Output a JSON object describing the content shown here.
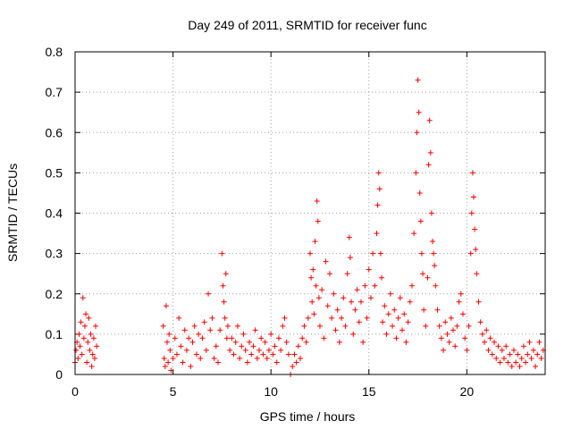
{
  "chart_data": {
    "type": "scatter",
    "title": "Day 249 of 2011, SRMTID for receiver func",
    "xlabel": "GPS time / hours",
    "ylabel": "SRMTID / TECUs",
    "xlim": [
      0,
      24
    ],
    "ylim": [
      0,
      0.8
    ],
    "xticks": [
      0,
      5,
      10,
      15,
      20
    ],
    "xtick_labels": [
      "0",
      "5",
      "10",
      "15",
      "20"
    ],
    "yticks": [
      0,
      0.1,
      0.2,
      0.3,
      0.4,
      0.5,
      0.6,
      0.7,
      0.8
    ],
    "ytick_labels": [
      "0",
      "0.1",
      "0.2",
      "0.3",
      "0.4",
      "0.5",
      "0.6",
      "0.7",
      "0.8"
    ],
    "grid": true,
    "marker": "plus",
    "color": "#ff0000",
    "series": [
      {
        "name": "SRMTID",
        "points": [
          [
            0.0,
            0.03
          ],
          [
            0.05,
            0.06
          ],
          [
            0.1,
            0.08
          ],
          [
            0.15,
            0.04
          ],
          [
            0.2,
            0.1
          ],
          [
            0.25,
            0.07
          ],
          [
            0.3,
            0.13
          ],
          [
            0.35,
            0.05
          ],
          [
            0.4,
            0.19
          ],
          [
            0.45,
            0.09
          ],
          [
            0.5,
            0.12
          ],
          [
            0.55,
            0.15
          ],
          [
            0.6,
            0.03
          ],
          [
            0.65,
            0.08
          ],
          [
            0.7,
            0.14
          ],
          [
            0.75,
            0.06
          ],
          [
            0.8,
            0.1
          ],
          [
            0.85,
            0.02
          ],
          [
            0.9,
            0.05
          ],
          [
            0.95,
            0.09
          ],
          [
            1.0,
            0.04
          ],
          [
            1.05,
            0.12
          ],
          [
            1.1,
            0.07
          ],
          [
            4.5,
            0.12
          ],
          [
            4.55,
            0.04
          ],
          [
            4.6,
            0.02
          ],
          [
            4.65,
            0.17
          ],
          [
            4.7,
            0.08
          ],
          [
            4.75,
            0.03
          ],
          [
            4.8,
            0.1
          ],
          [
            4.85,
            0.06
          ],
          [
            4.9,
            0.01
          ],
          [
            5.0,
            0.04
          ],
          [
            5.1,
            0.09
          ],
          [
            5.2,
            0.05
          ],
          [
            5.3,
            0.14
          ],
          [
            5.4,
            0.07
          ],
          [
            5.5,
            0.03
          ],
          [
            5.6,
            0.11
          ],
          [
            5.7,
            0.06
          ],
          [
            5.8,
            0.09
          ],
          [
            5.9,
            0.02
          ],
          [
            6.0,
            0.08
          ],
          [
            6.1,
            0.12
          ],
          [
            6.2,
            0.05
          ],
          [
            6.3,
            0.1
          ],
          [
            6.4,
            0.04
          ],
          [
            6.5,
            0.09
          ],
          [
            6.6,
            0.13
          ],
          [
            6.7,
            0.06
          ],
          [
            6.8,
            0.2
          ],
          [
            6.9,
            0.11
          ],
          [
            7.0,
            0.14
          ],
          [
            7.1,
            0.04
          ],
          [
            7.2,
            0.07
          ],
          [
            7.3,
            0.03
          ],
          [
            7.4,
            0.11
          ],
          [
            7.5,
            0.3
          ],
          [
            7.55,
            0.22
          ],
          [
            7.6,
            0.18
          ],
          [
            7.65,
            0.14
          ],
          [
            7.7,
            0.25
          ],
          [
            7.75,
            0.09
          ],
          [
            7.8,
            0.12
          ],
          [
            7.9,
            0.06
          ],
          [
            8.0,
            0.09
          ],
          [
            8.1,
            0.05
          ],
          [
            8.2,
            0.08
          ],
          [
            8.3,
            0.12
          ],
          [
            8.4,
            0.04
          ],
          [
            8.5,
            0.07
          ],
          [
            8.6,
            0.1
          ],
          [
            8.7,
            0.06
          ],
          [
            8.8,
            0.03
          ],
          [
            8.9,
            0.08
          ],
          [
            9.0,
            0.05
          ],
          [
            9.1,
            0.07
          ],
          [
            9.2,
            0.11
          ],
          [
            9.3,
            0.04
          ],
          [
            9.4,
            0.06
          ],
          [
            9.5,
            0.09
          ],
          [
            9.6,
            0.05
          ],
          [
            9.7,
            0.08
          ],
          [
            9.8,
            0.04
          ],
          [
            9.9,
            0.06
          ],
          [
            10.0,
            0.1
          ],
          [
            10.1,
            0.05
          ],
          [
            10.2,
            0.07
          ],
          [
            10.3,
            0.03
          ],
          [
            10.4,
            0.09
          ],
          [
            10.5,
            0.06
          ],
          [
            10.6,
            0.12
          ],
          [
            10.7,
            0.14
          ],
          [
            10.8,
            0.08
          ],
          [
            10.9,
            0.05
          ],
          [
            11.0,
            0.0
          ],
          [
            11.1,
            0.02
          ],
          [
            11.2,
            0.05
          ],
          [
            11.3,
            0.03
          ],
          [
            11.4,
            0.07
          ],
          [
            11.5,
            0.04
          ],
          [
            11.6,
            0.09
          ],
          [
            11.7,
            0.12
          ],
          [
            11.8,
            0.08
          ],
          [
            11.9,
            0.14
          ],
          [
            12.0,
            0.3
          ],
          [
            12.05,
            0.24
          ],
          [
            12.1,
            0.18
          ],
          [
            12.15,
            0.26
          ],
          [
            12.2,
            0.15
          ],
          [
            12.25,
            0.33
          ],
          [
            12.3,
            0.22
          ],
          [
            12.35,
            0.43
          ],
          [
            12.4,
            0.38
          ],
          [
            12.45,
            0.19
          ],
          [
            12.5,
            0.12
          ],
          [
            12.6,
            0.21
          ],
          [
            12.7,
            0.09
          ],
          [
            12.8,
            0.28
          ],
          [
            12.9,
            0.17
          ],
          [
            13.0,
            0.25
          ],
          [
            13.1,
            0.14
          ],
          [
            13.2,
            0.2
          ],
          [
            13.3,
            0.11
          ],
          [
            13.4,
            0.16
          ],
          [
            13.5,
            0.08
          ],
          [
            13.6,
            0.14
          ],
          [
            13.7,
            0.19
          ],
          [
            13.8,
            0.12
          ],
          [
            13.9,
            0.25
          ],
          [
            14.0,
            0.34
          ],
          [
            14.05,
            0.29
          ],
          [
            14.1,
            0.18
          ],
          [
            14.2,
            0.1
          ],
          [
            14.3,
            0.16
          ],
          [
            14.4,
            0.21
          ],
          [
            14.5,
            0.13
          ],
          [
            14.6,
            0.18
          ],
          [
            14.7,
            0.08
          ],
          [
            14.8,
            0.22
          ],
          [
            14.9,
            0.14
          ],
          [
            15.0,
            0.26
          ],
          [
            15.1,
            0.19
          ],
          [
            15.2,
            0.3
          ],
          [
            15.3,
            0.22
          ],
          [
            15.4,
            0.35
          ],
          [
            15.45,
            0.42
          ],
          [
            15.5,
            0.5
          ],
          [
            15.55,
            0.46
          ],
          [
            15.6,
            0.3
          ],
          [
            15.65,
            0.24
          ],
          [
            15.7,
            0.13
          ],
          [
            15.8,
            0.17
          ],
          [
            15.9,
            0.1
          ],
          [
            16.0,
            0.15
          ],
          [
            16.1,
            0.2
          ],
          [
            16.2,
            0.12
          ],
          [
            16.3,
            0.16
          ],
          [
            16.4,
            0.09
          ],
          [
            16.5,
            0.14
          ],
          [
            16.6,
            0.19
          ],
          [
            16.7,
            0.11
          ],
          [
            16.8,
            0.15
          ],
          [
            16.9,
            0.08
          ],
          [
            17.0,
            0.13
          ],
          [
            17.1,
            0.18
          ],
          [
            17.2,
            0.22
          ],
          [
            17.3,
            0.35
          ],
          [
            17.4,
            0.5
          ],
          [
            17.45,
            0.6
          ],
          [
            17.5,
            0.73
          ],
          [
            17.55,
            0.65
          ],
          [
            17.6,
            0.45
          ],
          [
            17.65,
            0.38
          ],
          [
            17.7,
            0.3
          ],
          [
            17.75,
            0.25
          ],
          [
            17.8,
            0.16
          ],
          [
            17.9,
            0.12
          ],
          [
            18.0,
            0.24
          ],
          [
            18.05,
            0.52
          ],
          [
            18.1,
            0.63
          ],
          [
            18.15,
            0.55
          ],
          [
            18.2,
            0.4
          ],
          [
            18.25,
            0.33
          ],
          [
            18.3,
            0.3
          ],
          [
            18.35,
            0.27
          ],
          [
            18.4,
            0.22
          ],
          [
            18.5,
            0.16
          ],
          [
            18.6,
            0.12
          ],
          [
            18.7,
            0.09
          ],
          [
            18.8,
            0.06
          ],
          [
            18.9,
            0.13
          ],
          [
            19.0,
            0.1
          ],
          [
            19.1,
            0.08
          ],
          [
            19.2,
            0.14
          ],
          [
            19.3,
            0.11
          ],
          [
            19.4,
            0.07
          ],
          [
            19.5,
            0.12
          ],
          [
            19.6,
            0.18
          ],
          [
            19.7,
            0.2
          ],
          [
            19.8,
            0.15
          ],
          [
            19.9,
            0.09
          ],
          [
            20.0,
            0.06
          ],
          [
            20.1,
            0.12
          ],
          [
            20.2,
            0.3
          ],
          [
            20.25,
            0.4
          ],
          [
            20.3,
            0.5
          ],
          [
            20.35,
            0.44
          ],
          [
            20.4,
            0.36
          ],
          [
            20.45,
            0.31
          ],
          [
            20.5,
            0.25
          ],
          [
            20.6,
            0.18
          ],
          [
            20.7,
            0.13
          ],
          [
            20.8,
            0.1
          ],
          [
            20.9,
            0.08
          ],
          [
            21.0,
            0.11
          ],
          [
            21.1,
            0.06
          ],
          [
            21.2,
            0.09
          ],
          [
            21.3,
            0.05
          ],
          [
            21.4,
            0.08
          ],
          [
            21.5,
            0.04
          ],
          [
            21.6,
            0.07
          ],
          [
            21.7,
            0.03
          ],
          [
            21.8,
            0.06
          ],
          [
            21.9,
            0.04
          ],
          [
            22.0,
            0.07
          ],
          [
            22.1,
            0.03
          ],
          [
            22.2,
            0.05
          ],
          [
            22.3,
            0.02
          ],
          [
            22.4,
            0.06
          ],
          [
            22.5,
            0.03
          ],
          [
            22.6,
            0.05
          ],
          [
            22.7,
            0.02
          ],
          [
            22.8,
            0.04
          ],
          [
            22.9,
            0.07
          ],
          [
            23.0,
            0.03
          ],
          [
            23.1,
            0.05
          ],
          [
            23.2,
            0.08
          ],
          [
            23.3,
            0.04
          ],
          [
            23.4,
            0.06
          ],
          [
            23.5,
            0.02
          ],
          [
            23.6,
            0.05
          ],
          [
            23.7,
            0.08
          ],
          [
            23.8,
            0.04
          ],
          [
            23.9,
            0.06
          ]
        ]
      }
    ]
  }
}
